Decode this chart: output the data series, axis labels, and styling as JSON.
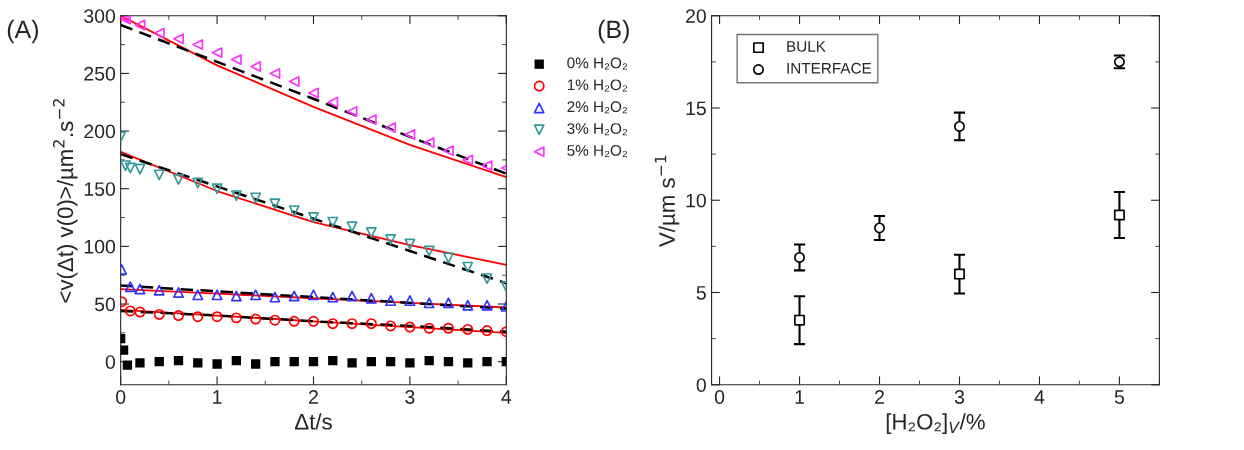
{
  "chart_data": [
    {
      "type": "scatter",
      "annotations": [
        "(A)"
      ],
      "xlabel": "Δt/s",
      "ylabel": "<v(Δt) v(0)>/µm$^{2}$.s$^{−2}$",
      "xlim": [
        0,
        4
      ],
      "ylim": [
        -20,
        300
      ],
      "xticks": [
        0,
        1,
        2,
        3,
        4
      ],
      "yticks": [
        0,
        50,
        100,
        150,
        200,
        250,
        300
      ],
      "legend": "right",
      "grid": false,
      "series": [
        {
          "name": "0% H₂O₂",
          "color": "#000000",
          "marker": "square-filled",
          "x": [
            0,
            0.03,
            0.07,
            0.2,
            0.4,
            0.6,
            0.8,
            1.0,
            1.2,
            1.4,
            1.6,
            1.8,
            2.0,
            2.2,
            2.4,
            2.6,
            2.8,
            3.0,
            3.2,
            3.4,
            3.6,
            3.8,
            4.0
          ],
          "values": [
            20,
            10,
            -3,
            -1,
            0,
            1,
            -1,
            -2,
            1,
            -2,
            0,
            0,
            0,
            1,
            -1,
            0,
            0,
            -1,
            1,
            0,
            -1,
            0,
            0
          ]
        },
        {
          "name": "1% H₂O₂",
          "color": "#ff0000",
          "marker": "circle",
          "x": [
            0.01,
            0.1,
            0.2,
            0.4,
            0.6,
            0.8,
            1.0,
            1.2,
            1.4,
            1.6,
            1.8,
            2.0,
            2.2,
            2.4,
            2.6,
            2.8,
            3.0,
            3.2,
            3.4,
            3.6,
            3.8,
            4.0
          ],
          "values": [
            52,
            44,
            43,
            41,
            40,
            39,
            39,
            38,
            37,
            36,
            35,
            35,
            33,
            33,
            33,
            31,
            30,
            29,
            29,
            28,
            27,
            26
          ]
        },
        {
          "name": "2% H₂O₂",
          "color": "#3333ff",
          "marker": "triangle",
          "x": [
            0.01,
            0.1,
            0.2,
            0.4,
            0.6,
            0.8,
            1.0,
            1.2,
            1.4,
            1.6,
            1.8,
            2.0,
            2.2,
            2.4,
            2.6,
            2.8,
            3.0,
            3.2,
            3.4,
            3.6,
            3.8,
            4.0
          ],
          "values": [
            80,
            65,
            63,
            62,
            60,
            58,
            58,
            57,
            58,
            56,
            57,
            58,
            56,
            57,
            55,
            53,
            53,
            51,
            51,
            49,
            49,
            48
          ]
        },
        {
          "name": "3% H₂O₂",
          "color": "#339999",
          "marker": "triangle-down",
          "x": [
            0,
            0.05,
            0.1,
            0.2,
            0.4,
            0.6,
            0.8,
            1.0,
            1.2,
            1.4,
            1.6,
            1.8,
            2.0,
            2.2,
            2.4,
            2.6,
            2.8,
            3.0,
            3.2,
            3.4,
            3.6,
            3.8,
            4.0
          ],
          "values": [
            195,
            170,
            168,
            167,
            162,
            158,
            155,
            150,
            144,
            142,
            137,
            131,
            125,
            121,
            117,
            112,
            106,
            102,
            96,
            90,
            82,
            72,
            65
          ]
        },
        {
          "name": "5% H₂O₂",
          "color": "#ff33ff",
          "marker": "triangle-left",
          "x": [
            0.03,
            0.05,
            0.2,
            0.4,
            0.6,
            0.8,
            1.0,
            1.2,
            1.4,
            1.6,
            1.8,
            2.0,
            2.2,
            2.4,
            2.6,
            2.8,
            3.0,
            3.2,
            3.4,
            3.6,
            3.8,
            4.0
          ],
          "values": [
            299,
            297,
            292,
            285,
            280,
            275,
            268,
            262,
            256,
            250,
            243,
            233,
            225,
            217,
            210,
            203,
            197,
            190,
            183,
            175,
            170,
            168
          ]
        },
        {
          "type": "line",
          "color": "#ff0000",
          "line_style": "solid",
          "x": [
            0,
            1,
            2,
            3,
            4
          ],
          "values": [
            300,
            257,
            221,
            188,
            160
          ]
        },
        {
          "type": "line",
          "color": "#000000",
          "line_style": "dashed",
          "x": [
            0,
            1,
            2,
            3,
            4
          ],
          "values": [
            292,
            260,
            228,
            195,
            163
          ]
        },
        {
          "type": "line",
          "color": "#ff0000",
          "line_style": "solid",
          "x": [
            0,
            1,
            2,
            3,
            4
          ],
          "values": [
            182,
            148,
            121,
            101,
            84
          ]
        },
        {
          "type": "line",
          "color": "#000000",
          "line_style": "dashed",
          "x": [
            0,
            1,
            2,
            3,
            4
          ],
          "values": [
            180,
            152,
            124,
            96,
            68
          ]
        },
        {
          "type": "line",
          "color": "#ff0000",
          "line_style": "solid",
          "x": [
            0,
            1,
            2,
            3,
            4
          ],
          "values": [
            63,
            59,
            55,
            51,
            47
          ]
        },
        {
          "type": "line",
          "color": "#000000",
          "line_style": "dashed",
          "x": [
            0,
            1,
            2,
            3,
            4
          ],
          "values": [
            66,
            61,
            56,
            51,
            46
          ]
        },
        {
          "type": "line",
          "color": "#ff0000",
          "line_style": "solid",
          "x": [
            0,
            1,
            2,
            3,
            4
          ],
          "values": [
            45,
            40,
            35,
            30,
            25
          ]
        },
        {
          "type": "line",
          "color": "#000000",
          "line_style": "dashed",
          "x": [
            0,
            1,
            2,
            3,
            4
          ],
          "values": [
            44,
            40,
            35,
            31,
            26
          ]
        }
      ]
    },
    {
      "type": "scatter",
      "annotations": [
        "(B)"
      ],
      "xlabel": "[H₂O₂]$_{V}$/%",
      "ylabel": "V/µm s$^{−1}$",
      "xlim": [
        -0.1,
        5.5
      ],
      "ylim": [
        0,
        20
      ],
      "xticks": [
        0,
        1,
        2,
        3,
        4,
        5
      ],
      "yticks": [
        0,
        5,
        10,
        15,
        20
      ],
      "legend": "top left",
      "grid": false,
      "series": [
        {
          "name": "BULK",
          "color": "#000000",
          "marker": "square",
          "x": [
            1,
            3,
            5
          ],
          "values": [
            3.5,
            6.0,
            9.2
          ],
          "errors": [
            1.3,
            1.05,
            1.25
          ]
        },
        {
          "name": "INTERFACE",
          "color": "#000000",
          "marker": "circle",
          "x": [
            1,
            2,
            3,
            5
          ],
          "values": [
            6.9,
            8.5,
            14.0,
            17.5
          ],
          "errors": [
            0.7,
            0.65,
            0.75,
            0.35
          ]
        }
      ]
    }
  ]
}
